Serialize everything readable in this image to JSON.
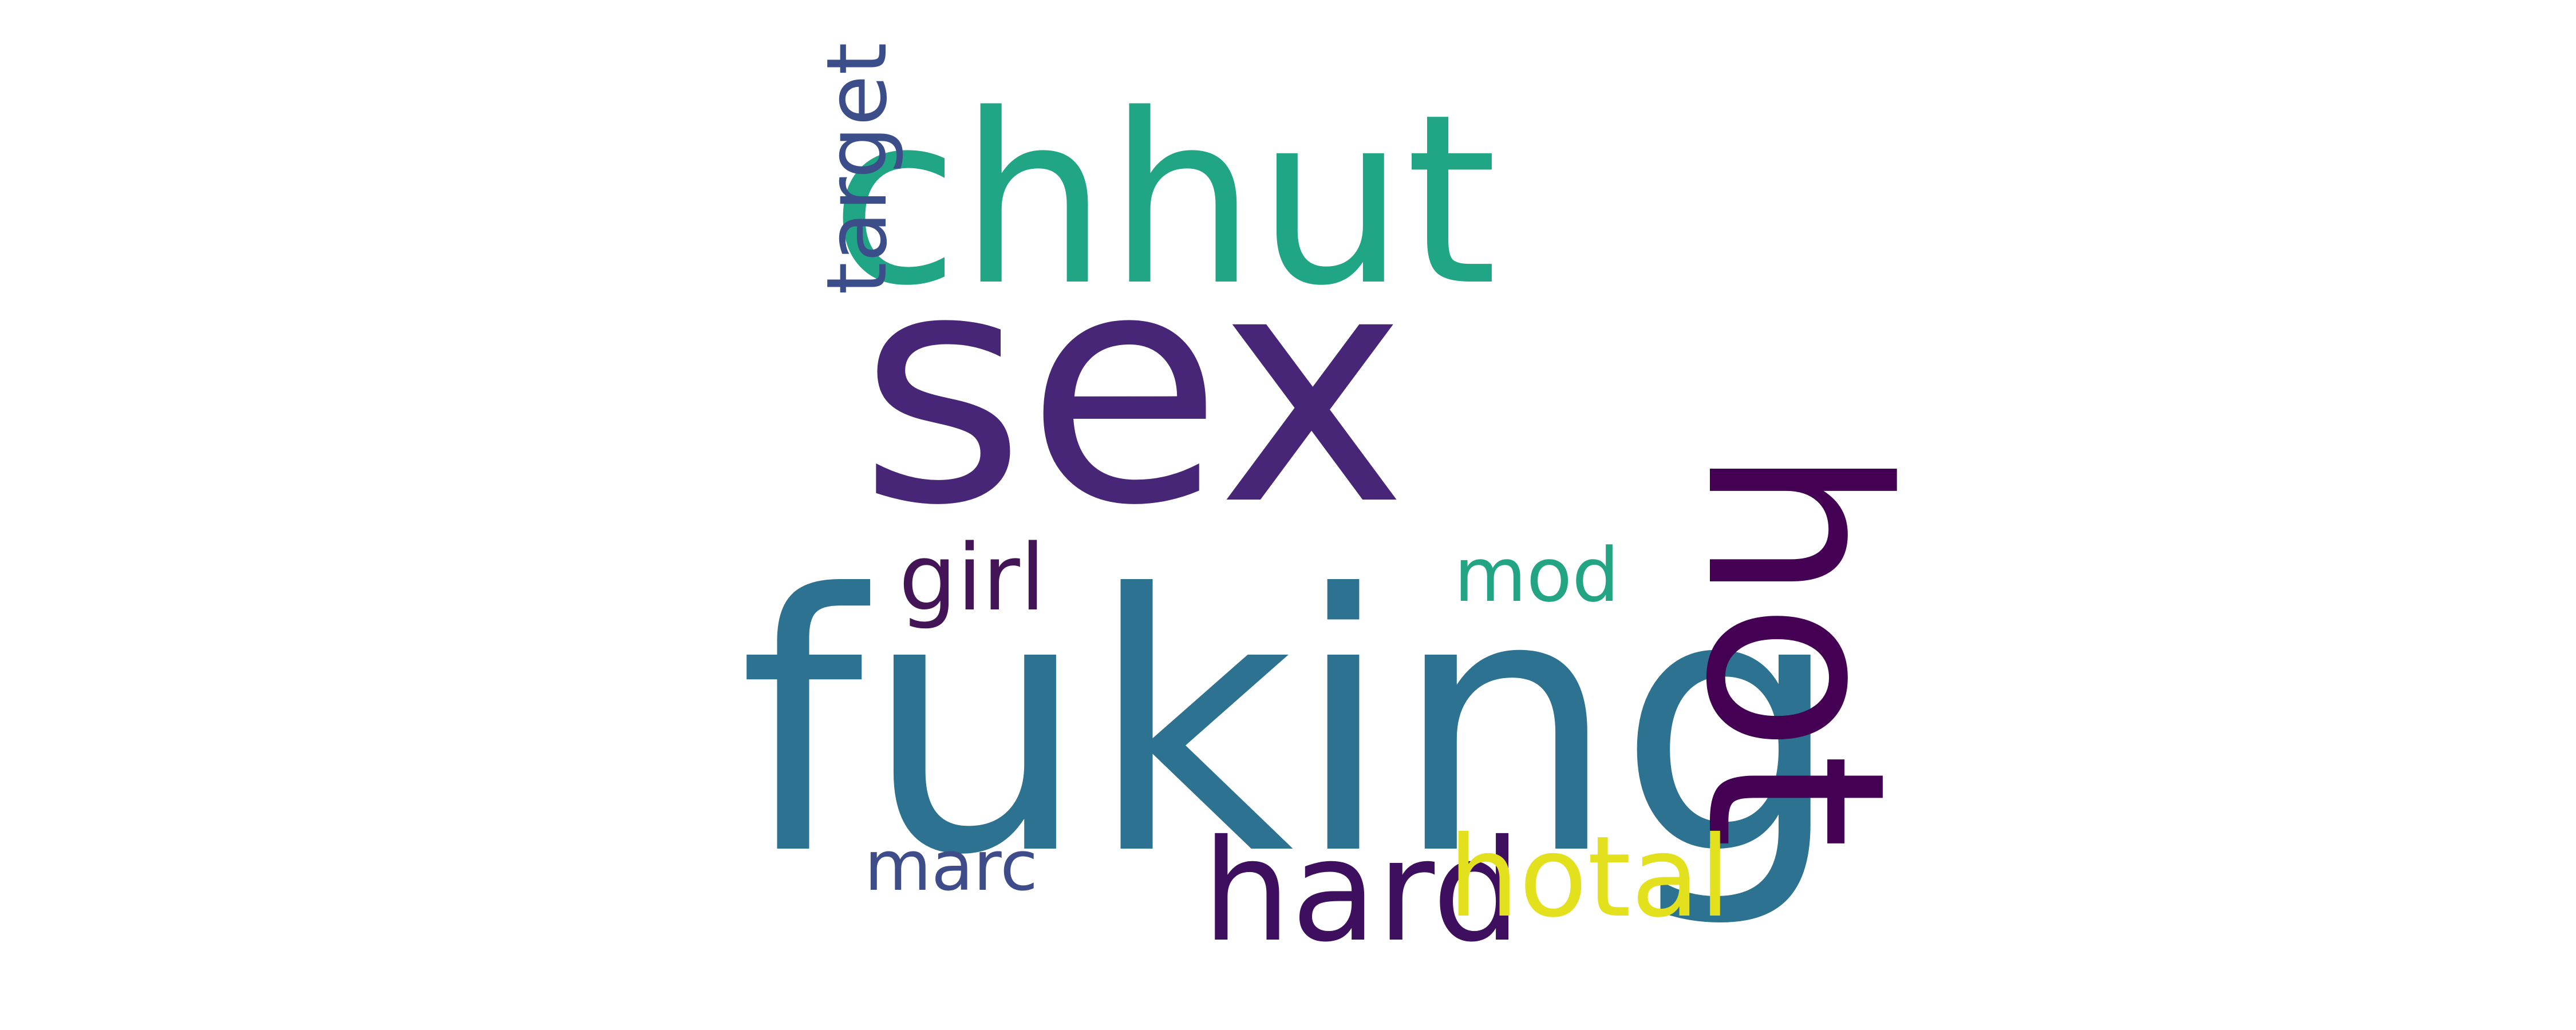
{
  "words": [
    {
      "id": "sex",
      "text": "sex",
      "color": "#482677"
    },
    {
      "id": "fuking",
      "text": "fuking",
      "color": "#2d7391"
    },
    {
      "id": "hot",
      "text": "hot",
      "color": "#440154"
    },
    {
      "id": "chhut",
      "text": "chhut",
      "color": "#21a685"
    },
    {
      "id": "hard",
      "text": "hard",
      "color": "#3e0f5f"
    },
    {
      "id": "hotal",
      "text": "hotal",
      "color": "#e3e01d"
    },
    {
      "id": "target",
      "text": "target",
      "color": "#3b4e8a"
    },
    {
      "id": "girl",
      "text": "girl",
      "color": "#441556"
    },
    {
      "id": "mod",
      "text": "mod",
      "color": "#23a584"
    },
    {
      "id": "marc",
      "text": "marc",
      "color": "#3e4c8a"
    }
  ]
}
